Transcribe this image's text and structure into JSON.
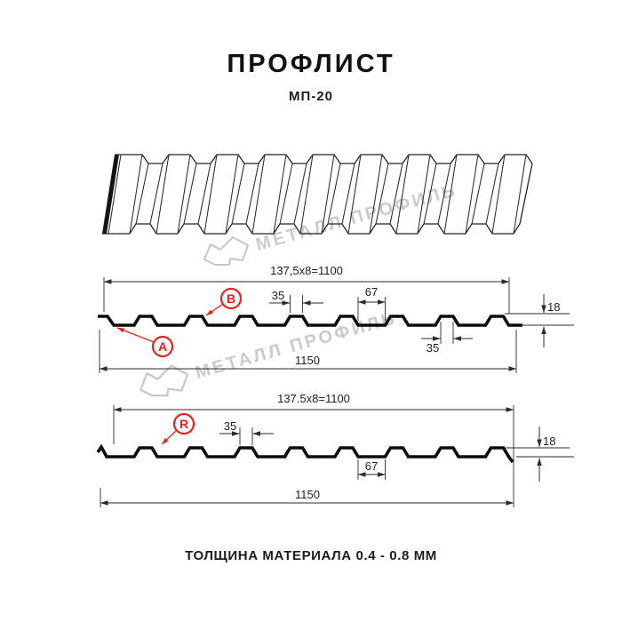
{
  "title": "ПРОФЛИСТ",
  "subtitle": "МП-20",
  "footer": "ТОЛЩИНА МАТЕРИАЛА 0.4 - 0.8 ММ",
  "watermark": {
    "text": "МЕТАЛЛ ПРОФИЛЬ"
  },
  "colors": {
    "accent_red": "#e8231d",
    "line": "#2b2b2b",
    "profile": "#0b0b0b",
    "watermark_gray": "#cbcbcb"
  },
  "section_top": {
    "dim_module": "137,5x8=1100",
    "dim_rib_top": "35",
    "dim_valley": "67",
    "dim_height": "18",
    "dim_rib_bottom": "35",
    "dim_total": "1150",
    "label_a": "A",
    "label_b": "B"
  },
  "section_bottom": {
    "dim_module": "137.5x8=1100",
    "dim_rib_top": "35",
    "dim_valley": "67",
    "dim_height": "18",
    "dim_total": "1150",
    "label_r": "R"
  }
}
